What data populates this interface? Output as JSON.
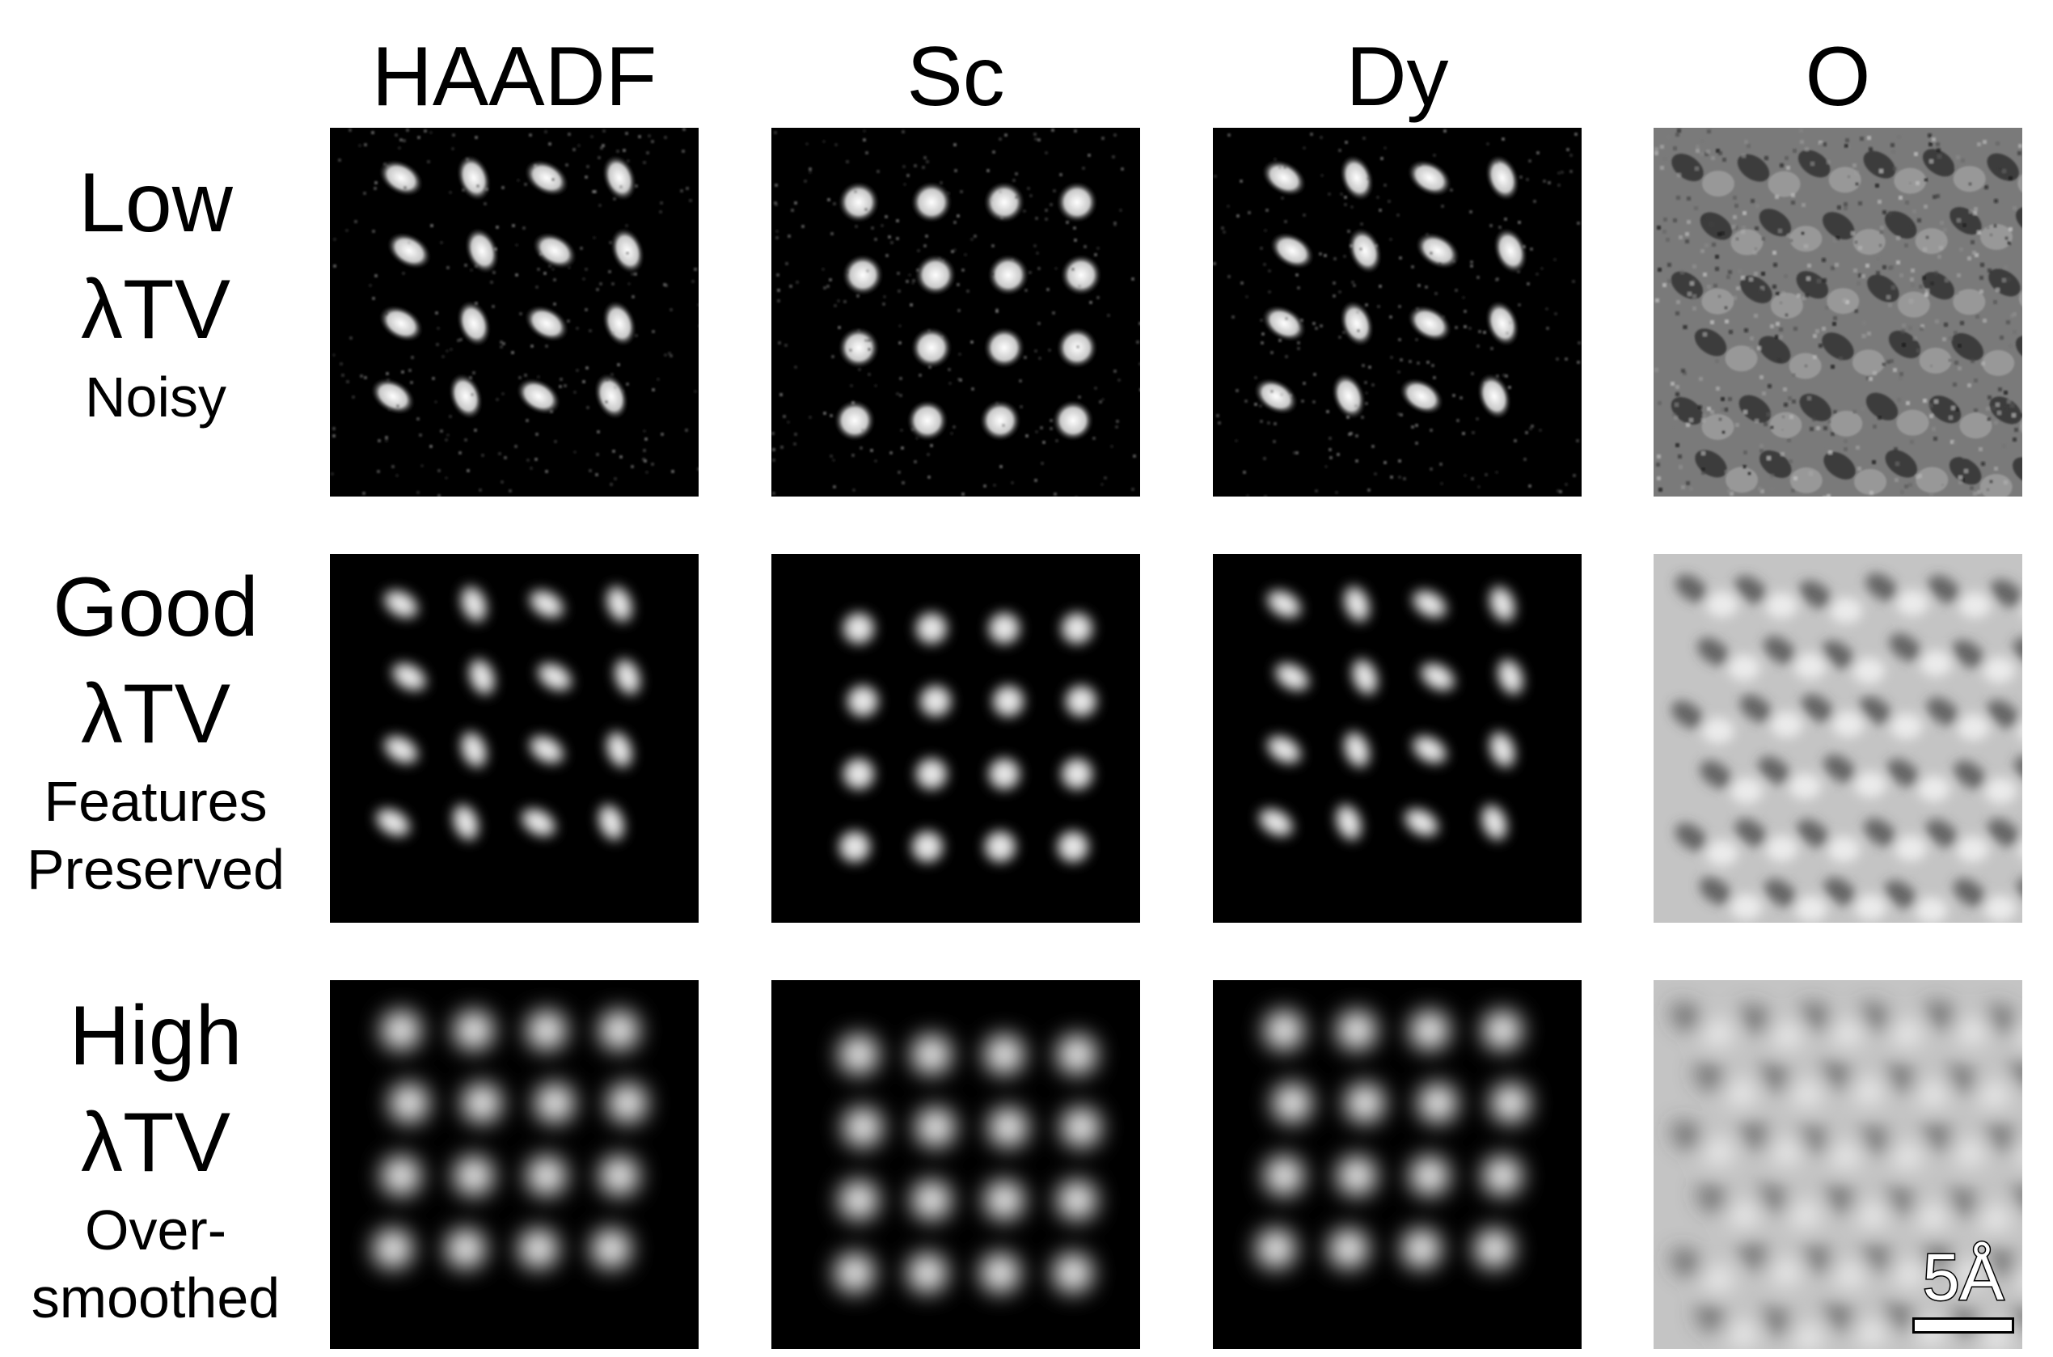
{
  "columns": [
    "HAADF",
    "Sc",
    "Dy",
    "O"
  ],
  "rows": [
    {
      "title": "Low",
      "param": "λTV",
      "desc1": "Noisy",
      "desc2": ""
    },
    {
      "title": "Good",
      "param": "λTV",
      "desc1": "Features",
      "desc2": "Preserved"
    },
    {
      "title": "High",
      "param": "λTV",
      "desc1": "Over-",
      "desc2": "smoothed"
    }
  ],
  "scalebar": {
    "label": "5Å"
  }
}
